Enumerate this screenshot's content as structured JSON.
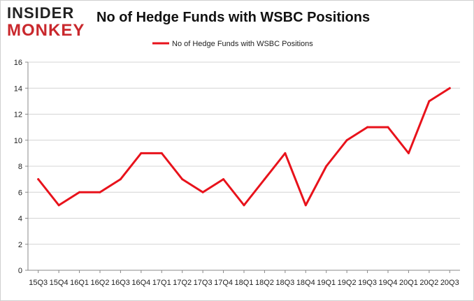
{
  "logo": {
    "top": "INSIDER",
    "bottom": "MONKEY"
  },
  "chart_data": {
    "type": "line",
    "title": "No of Hedge Funds with WSBC Positions",
    "xlabel": "",
    "ylabel": "",
    "categories": [
      "15Q3",
      "15Q4",
      "16Q1",
      "16Q2",
      "16Q3",
      "16Q4",
      "17Q1",
      "17Q2",
      "17Q3",
      "17Q4",
      "18Q1",
      "18Q2",
      "18Q3",
      "18Q4",
      "19Q1",
      "19Q2",
      "19Q3",
      "19Q4",
      "20Q1",
      "20Q2",
      "20Q3"
    ],
    "series": [
      {
        "name": "No of Hedge Funds with WSBC Positions",
        "values": [
          7,
          5,
          6,
          6,
          7,
          9,
          9,
          7,
          6,
          7,
          5,
          7,
          9,
          5,
          8,
          10,
          11,
          11,
          9,
          13,
          14
        ],
        "color": "#e8121b"
      }
    ],
    "ylim": [
      0,
      16
    ],
    "yticks": [
      0,
      2,
      4,
      6,
      8,
      10,
      12,
      14,
      16
    ],
    "grid": true,
    "legend": "top-center"
  }
}
